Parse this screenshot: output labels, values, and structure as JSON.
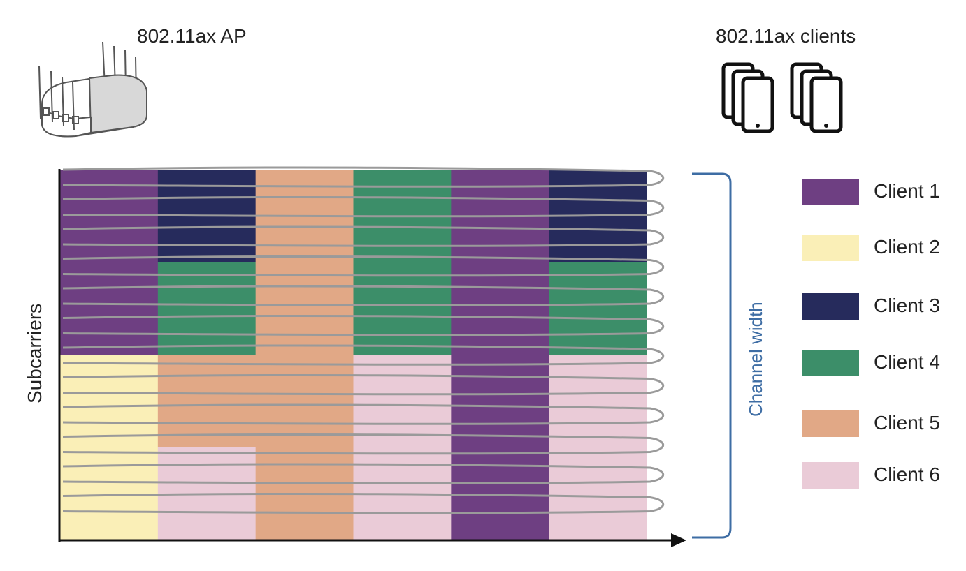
{
  "header": {
    "ap_label": "802.11ax AP",
    "clients_label": "802.11ax clients"
  },
  "icons": {
    "ap": "wifi-access-point-icon",
    "clients": "smartphone-group-icon"
  },
  "axis": {
    "y_label": "Subcarriers",
    "bracket_label": "Channel width"
  },
  "legend": [
    {
      "label": "Client 1",
      "color": "#6e3f82"
    },
    {
      "label": "Client 2",
      "color": "#faefb7"
    },
    {
      "label": "Client 3",
      "color": "#262b5c"
    },
    {
      "label": "Client 4",
      "color": "#3c8e69"
    },
    {
      "label": "Client 5",
      "color": "#e1a886"
    },
    {
      "label": "Client 6",
      "color": "#eacbd7"
    }
  ],
  "resource_grid": {
    "time_slots": 6,
    "subcarrier_rows": 12,
    "columns": [
      [
        {
          "client": 1,
          "rows": 6
        },
        {
          "client": 2,
          "rows": 6
        }
      ],
      [
        {
          "client": 3,
          "rows": 3
        },
        {
          "client": 4,
          "rows": 3
        },
        {
          "client": 5,
          "rows": 3
        },
        {
          "client": 6,
          "rows": 3
        }
      ],
      [
        {
          "client": 5,
          "rows": 12
        }
      ],
      [
        {
          "client": 4,
          "rows": 6
        },
        {
          "client": 6,
          "rows": 6
        }
      ],
      [
        {
          "client": 1,
          "rows": 12
        }
      ],
      [
        {
          "client": 3,
          "rows": 3
        },
        {
          "client": 4,
          "rows": 3
        },
        {
          "client": 6,
          "rows": 6
        }
      ]
    ],
    "subcarrier_lines": 12
  }
}
